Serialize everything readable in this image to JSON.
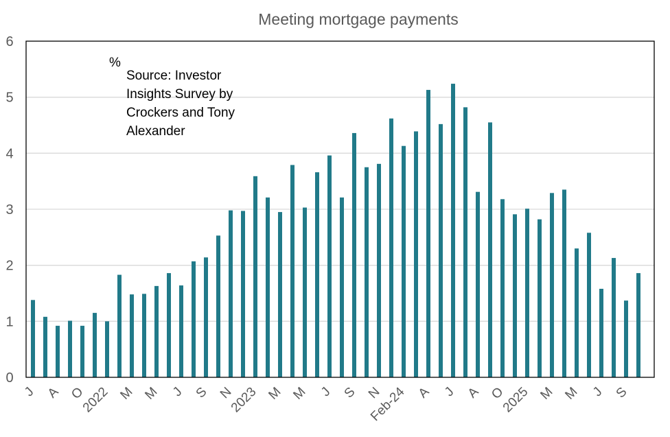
{
  "chart_data": {
    "type": "bar",
    "title": "Meeting mortgage payments",
    "xlabel": "",
    "ylabel": "%",
    "ylim": [
      0,
      6
    ],
    "yticks": [
      0,
      1,
      2,
      3,
      4,
      5,
      6
    ],
    "grid": true,
    "legend": null,
    "annotation": {
      "unit": "%",
      "source_lines": [
        "Source: Investor",
        "Insights Survey by",
        "Crockers and Tony",
        "Alexander"
      ]
    },
    "bar_color": "#217a89",
    "x_tick_labels": [
      "J",
      "A",
      "O",
      "2022",
      "M",
      "M",
      "J",
      "S",
      "N",
      "2023",
      "M",
      "M",
      "J",
      "S",
      "N",
      "Feb-24",
      "A",
      "J",
      "A",
      "O",
      "2025",
      "M",
      "M",
      "J",
      "S"
    ],
    "x_tick_every": 2,
    "values": [
      1.38,
      1.08,
      0.92,
      1.01,
      0.92,
      1.15,
      1.0,
      1.83,
      1.48,
      1.49,
      1.63,
      1.86,
      1.64,
      2.07,
      2.14,
      2.53,
      2.98,
      2.97,
      3.59,
      3.21,
      2.95,
      3.79,
      3.03,
      3.66,
      3.96,
      3.21,
      4.36,
      3.75,
      3.81,
      4.62,
      4.13,
      4.39,
      5.13,
      4.52,
      5.24,
      4.82,
      3.31,
      4.55,
      3.18,
      2.91,
      3.01,
      2.82,
      3.29,
      3.35,
      2.3,
      2.58,
      1.58,
      2.13,
      1.37,
      1.86
    ]
  }
}
